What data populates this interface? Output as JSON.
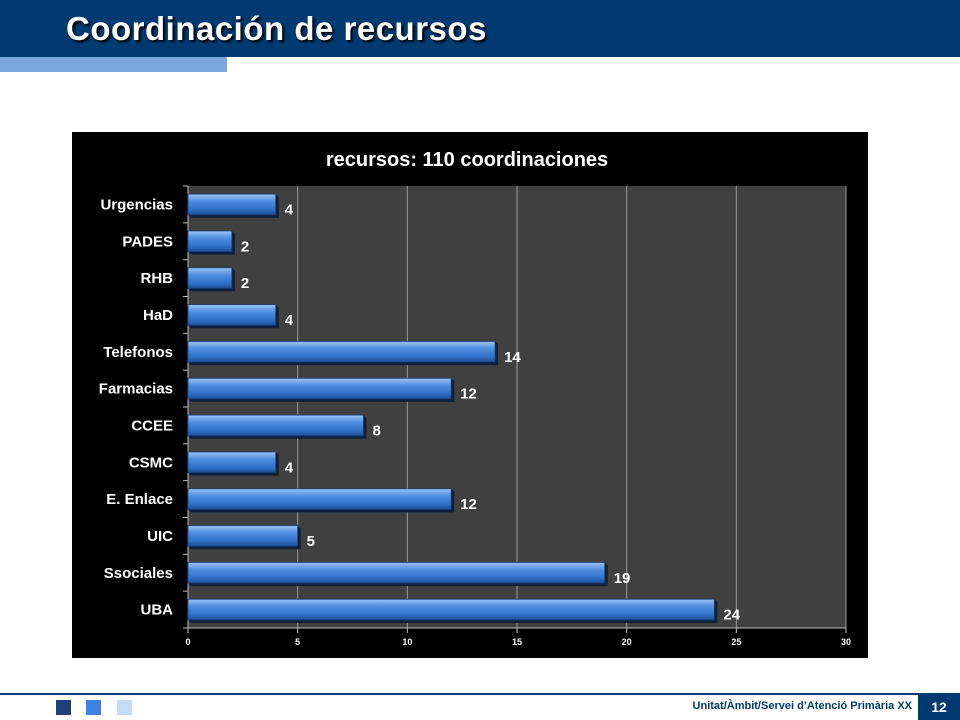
{
  "slide": {
    "title": "Coordinación de recursos",
    "footer_text": "Unitat/Àmbit/Servei d’Atenció Primària XX",
    "page_number": "12"
  },
  "colors": {
    "header": "#003a70",
    "header_accent": "#7aa6e0",
    "chart_background": "#000000",
    "plot_background": "#404040",
    "bar": "#3a7bd5",
    "text": "#ffffff"
  },
  "chart_data": {
    "type": "bar",
    "orientation": "horizontal",
    "title": "recursos: 110 coordinaciones",
    "categories": [
      "Urgencias",
      "PADES",
      "RHB",
      "HaD",
      "Telefonos",
      "Farmacias",
      "CCEE",
      "CSMC",
      "E. Enlace",
      "UIC",
      "Ssociales",
      "UBA"
    ],
    "values": [
      4,
      2,
      2,
      4,
      14,
      12,
      8,
      4,
      12,
      5,
      19,
      24
    ],
    "xlim": [
      0,
      30
    ],
    "xticks": [
      0,
      5,
      10,
      15,
      20,
      25,
      30
    ],
    "grid": true,
    "legend": "none",
    "data_labels": true
  }
}
